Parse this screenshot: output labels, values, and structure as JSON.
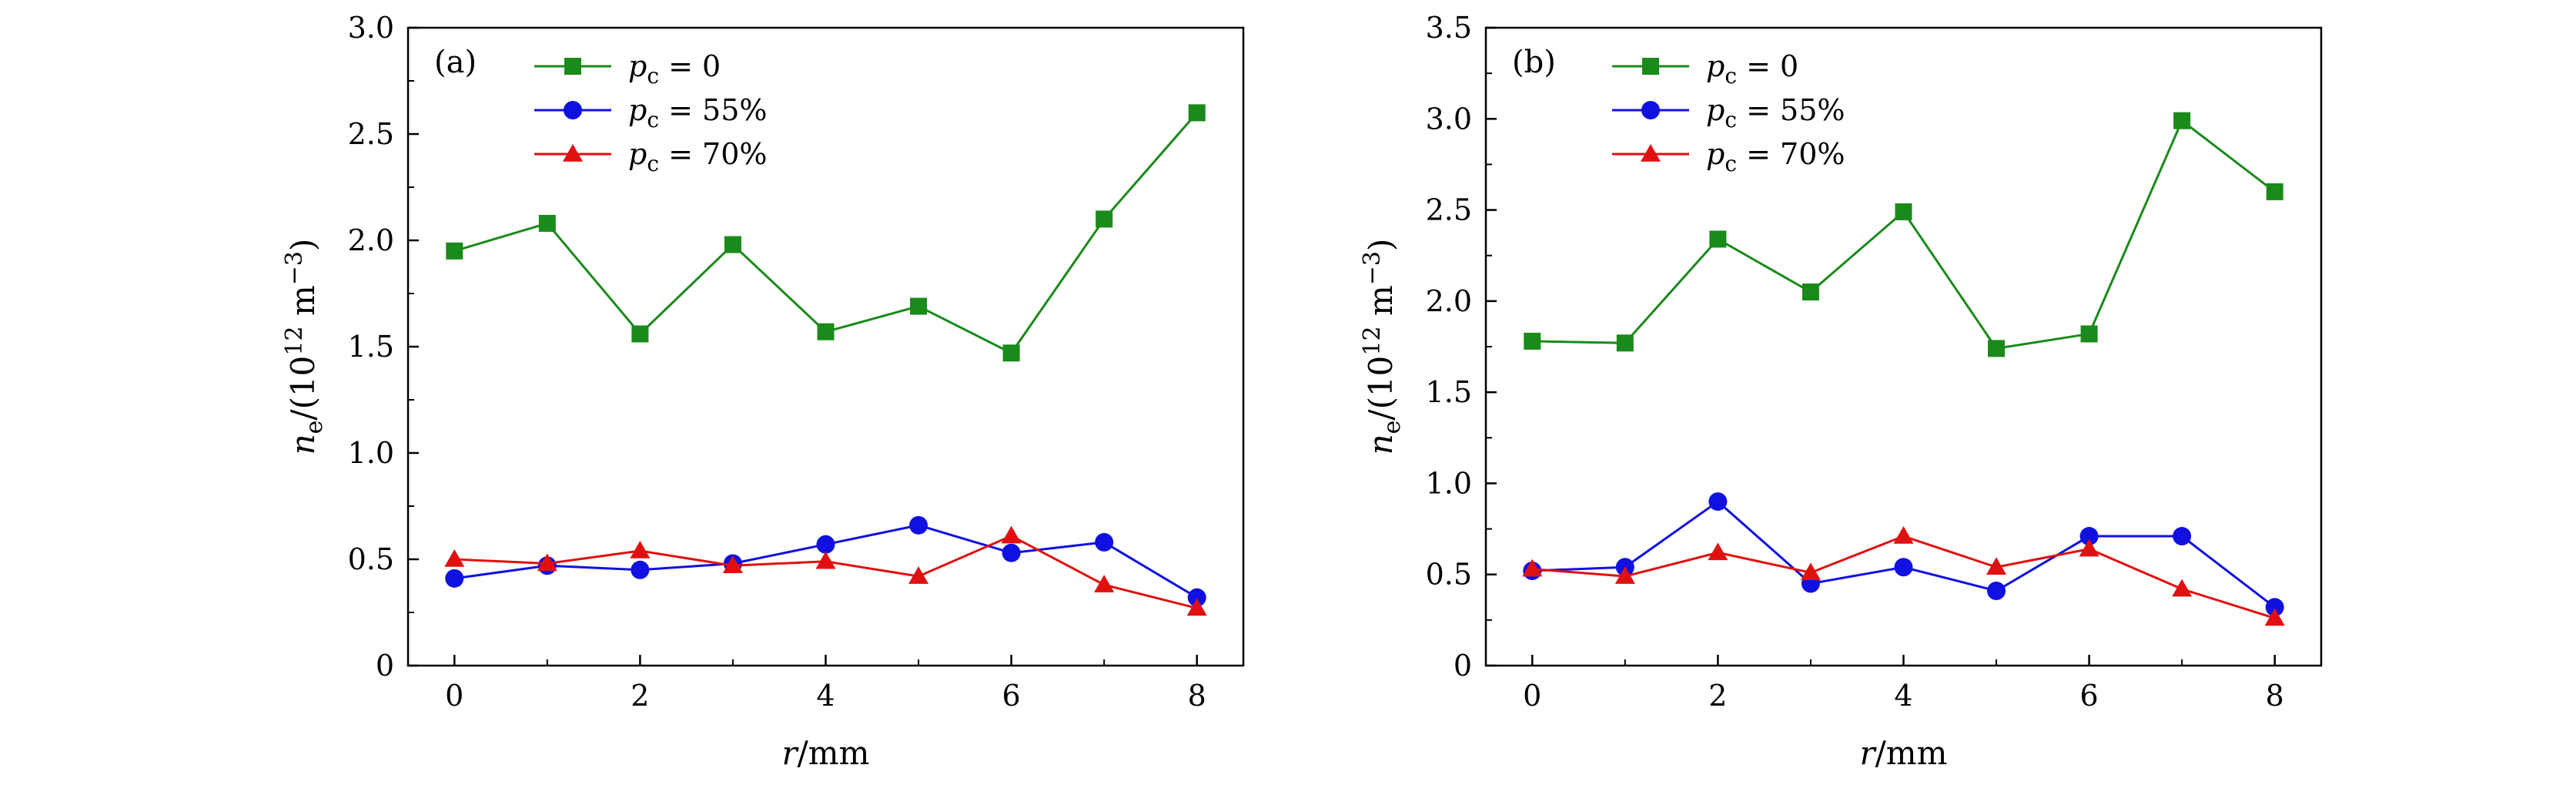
{
  "chart_data": [
    {
      "type": "line",
      "panel_label": "(a)",
      "xlabel": {
        "var": "r",
        "rest": "/mm"
      },
      "ylabel": {
        "var": "n",
        "sub": "e",
        "mid": "/(10",
        "sup": "12",
        "unit": " m",
        "unit_sup": "−3",
        "end": ")"
      },
      "xlim": [
        -0.5,
        8.5
      ],
      "ylim": [
        0,
        3.0
      ],
      "xticks": [
        "0",
        "2",
        "4",
        "6",
        "8"
      ],
      "xtick_values": [
        0,
        2,
        4,
        6,
        8
      ],
      "yticks": [
        "0",
        "0.5",
        "1.0",
        "1.5",
        "2.0",
        "2.5",
        "3.0"
      ],
      "ytick_values": [
        0,
        0.5,
        1.0,
        1.5,
        2.0,
        2.5,
        3.0
      ],
      "x": [
        0,
        1,
        2,
        3,
        4,
        5,
        6,
        7,
        8
      ],
      "legend_position": "top-left",
      "series": [
        {
          "name": "p_c = 0",
          "var": "p",
          "sub": "c",
          "eq": " = 0",
          "color": "#1a8a1a",
          "marker": "square",
          "values": [
            1.95,
            2.08,
            1.56,
            1.98,
            1.57,
            1.69,
            1.47,
            2.1,
            2.6
          ]
        },
        {
          "name": "p_c = 55%",
          "var": "p",
          "sub": "c",
          "eq": " = 55%",
          "color": "#1010e0",
          "marker": "circle",
          "values": [
            0.41,
            0.47,
            0.45,
            0.48,
            0.57,
            0.66,
            0.53,
            0.58,
            0.32
          ]
        },
        {
          "name": "p_c = 70%",
          "var": "p",
          "sub": "c",
          "eq": " = 70%",
          "color": "#e01010",
          "marker": "triangle",
          "values": [
            0.5,
            0.48,
            0.54,
            0.47,
            0.49,
            0.42,
            0.61,
            0.38,
            0.27
          ]
        }
      ]
    },
    {
      "type": "line",
      "panel_label": "(b)",
      "xlabel": {
        "var": "r",
        "rest": "/mm"
      },
      "ylabel": {
        "var": "n",
        "sub": "e",
        "mid": "/(10",
        "sup": "12",
        "unit": " m",
        "unit_sup": "−3",
        "end": ")"
      },
      "xlim": [
        -0.5,
        8.5
      ],
      "ylim": [
        0,
        3.5
      ],
      "xticks": [
        "0",
        "2",
        "4",
        "6",
        "8"
      ],
      "xtick_values": [
        0,
        2,
        4,
        6,
        8
      ],
      "yticks": [
        "0",
        "0.5",
        "1.0",
        "1.5",
        "2.0",
        "2.5",
        "3.0",
        "3.5"
      ],
      "ytick_values": [
        0,
        0.5,
        1.0,
        1.5,
        2.0,
        2.5,
        3.0,
        3.5
      ],
      "x": [
        0,
        1,
        2,
        3,
        4,
        5,
        6,
        7,
        8
      ],
      "legend_position": "top-left",
      "series": [
        {
          "name": "p_c = 0",
          "var": "p",
          "sub": "c",
          "eq": " = 0",
          "color": "#1a8a1a",
          "marker": "square",
          "values": [
            1.78,
            1.77,
            2.34,
            2.05,
            2.49,
            1.74,
            1.82,
            2.99,
            2.6
          ]
        },
        {
          "name": "p_c = 55%",
          "var": "p",
          "sub": "c",
          "eq": " = 55%",
          "color": "#1010e0",
          "marker": "circle",
          "values": [
            0.52,
            0.54,
            0.9,
            0.45,
            0.54,
            0.41,
            0.71,
            0.71,
            0.32
          ]
        },
        {
          "name": "p_c = 70%",
          "var": "p",
          "sub": "c",
          "eq": " = 70%",
          "color": "#e01010",
          "marker": "triangle",
          "values": [
            0.53,
            0.49,
            0.62,
            0.51,
            0.71,
            0.54,
            0.64,
            0.42,
            0.26
          ]
        }
      ]
    }
  ]
}
